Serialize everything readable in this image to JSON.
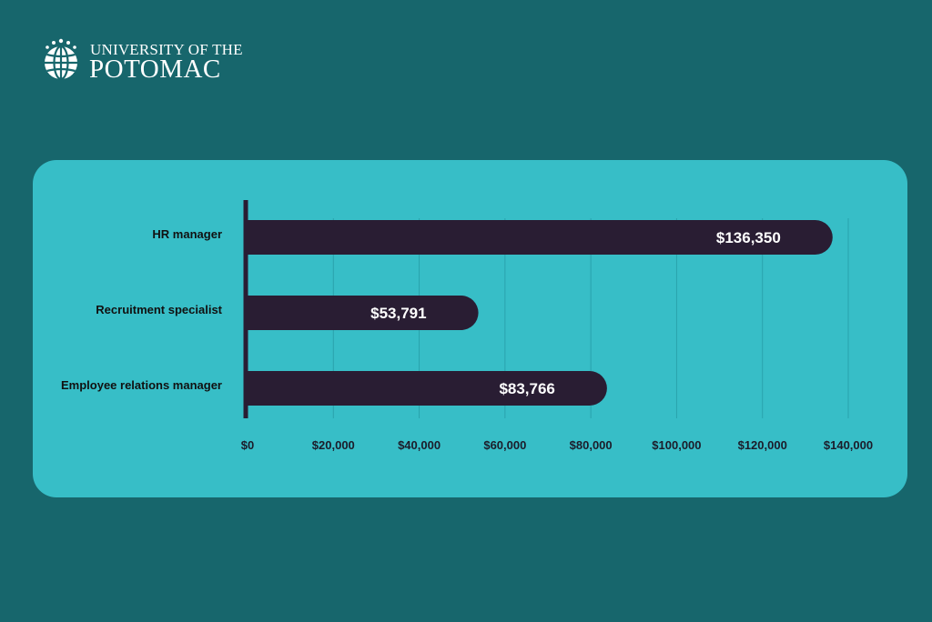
{
  "brand": {
    "line1": "UNIVERSITY OF THE",
    "line2": "POTOMAC",
    "logo_icon": "globe-icon"
  },
  "colors": {
    "page_background": "#17666c",
    "card_background": "#37bec7",
    "bar": "#291d33",
    "grid": "#2aa3ac"
  },
  "chart_data": {
    "type": "bar",
    "orientation": "horizontal",
    "categories": [
      "HR manager",
      "Recruitment specialist",
      "Employee relations manager"
    ],
    "values": [
      136350,
      53791,
      83766
    ],
    "value_labels": [
      "$136,350",
      "$53,791",
      "$83,766"
    ],
    "xlim": [
      0,
      140000
    ],
    "x_ticks": [
      0,
      20000,
      40000,
      60000,
      80000,
      100000,
      120000,
      140000
    ],
    "x_tick_labels": [
      "$0",
      "$20,000",
      "$40,000",
      "$60,000",
      "$80,000",
      "$100,000",
      "$120,000",
      "$140,000"
    ],
    "grid": true,
    "title": "",
    "xlabel": "",
    "ylabel": ""
  }
}
